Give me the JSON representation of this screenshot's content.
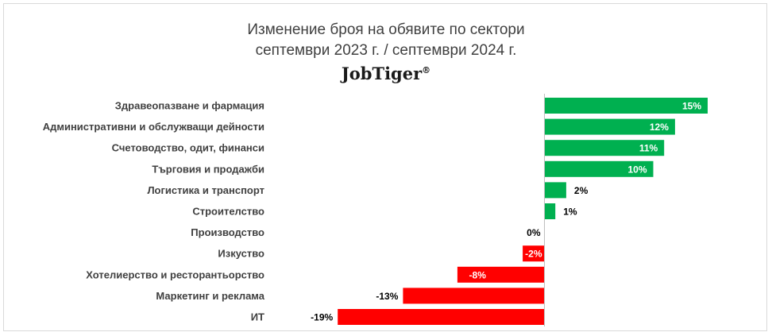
{
  "chart_data": {
    "type": "bar",
    "orientation": "horizontal",
    "title": "Изменение броя на обявите по сектори",
    "subtitle": "септември 2023 г. / септември 2024 г.",
    "brand": "JobTiger",
    "brand_mark": "®",
    "categories": [
      "Здравеопазване и фармация",
      "Административни и обслужващи дейности",
      "Счетоводство, одит, финанси",
      "Търговия и продажби",
      "Логистика и транспорт",
      "Строителство",
      "Производство",
      "Изкуство",
      "Хотелиерство и ресторантьорство",
      "Маркетинг и реклама",
      "ИТ"
    ],
    "values": [
      15,
      12,
      11,
      10,
      2,
      1,
      0,
      -2,
      -8,
      -13,
      -19
    ],
    "value_labels": [
      "15%",
      "12%",
      "11%",
      "10%",
      "2%",
      "1%",
      "0%",
      "-2%",
      "-8%",
      "-13%",
      "-19%"
    ],
    "xlim": [
      -19,
      15
    ],
    "grid": false,
    "legend": "none",
    "colors": {
      "positive": "#00b050",
      "negative": "#ff0000",
      "axis": "#bfbfbf"
    }
  }
}
